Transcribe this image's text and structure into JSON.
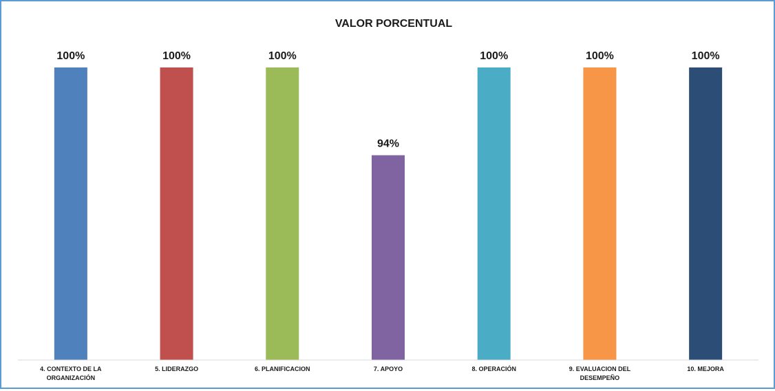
{
  "chart_data": {
    "type": "bar",
    "title": "VALOR PORCENTUAL",
    "xlabel": "",
    "ylabel": "",
    "categories": [
      [
        "4. CONTEXTO DE LA",
        "ORGANIZACIÓN"
      ],
      [
        "5. LIDERAZGO"
      ],
      [
        "6. PLANIFICACION"
      ],
      [
        "7. APOYO"
      ],
      [
        "8. OPERACIÓN"
      ],
      [
        "9. EVALUACION DEL",
        "DESEMPEÑO"
      ],
      [
        "10. MEJORA"
      ]
    ],
    "values": [
      100,
      100,
      100,
      94,
      100,
      100,
      100
    ],
    "value_labels": [
      "100%",
      "100%",
      "100%",
      "94%",
      "100%",
      "100%",
      "100%"
    ],
    "colors": [
      "#4f81bd",
      "#c0504d",
      "#9bbb59",
      "#8064a2",
      "#4bacc6",
      "#f79646",
      "#2c4d75"
    ],
    "ylim": [
      80,
      100
    ],
    "grid": false,
    "legend": "none"
  }
}
